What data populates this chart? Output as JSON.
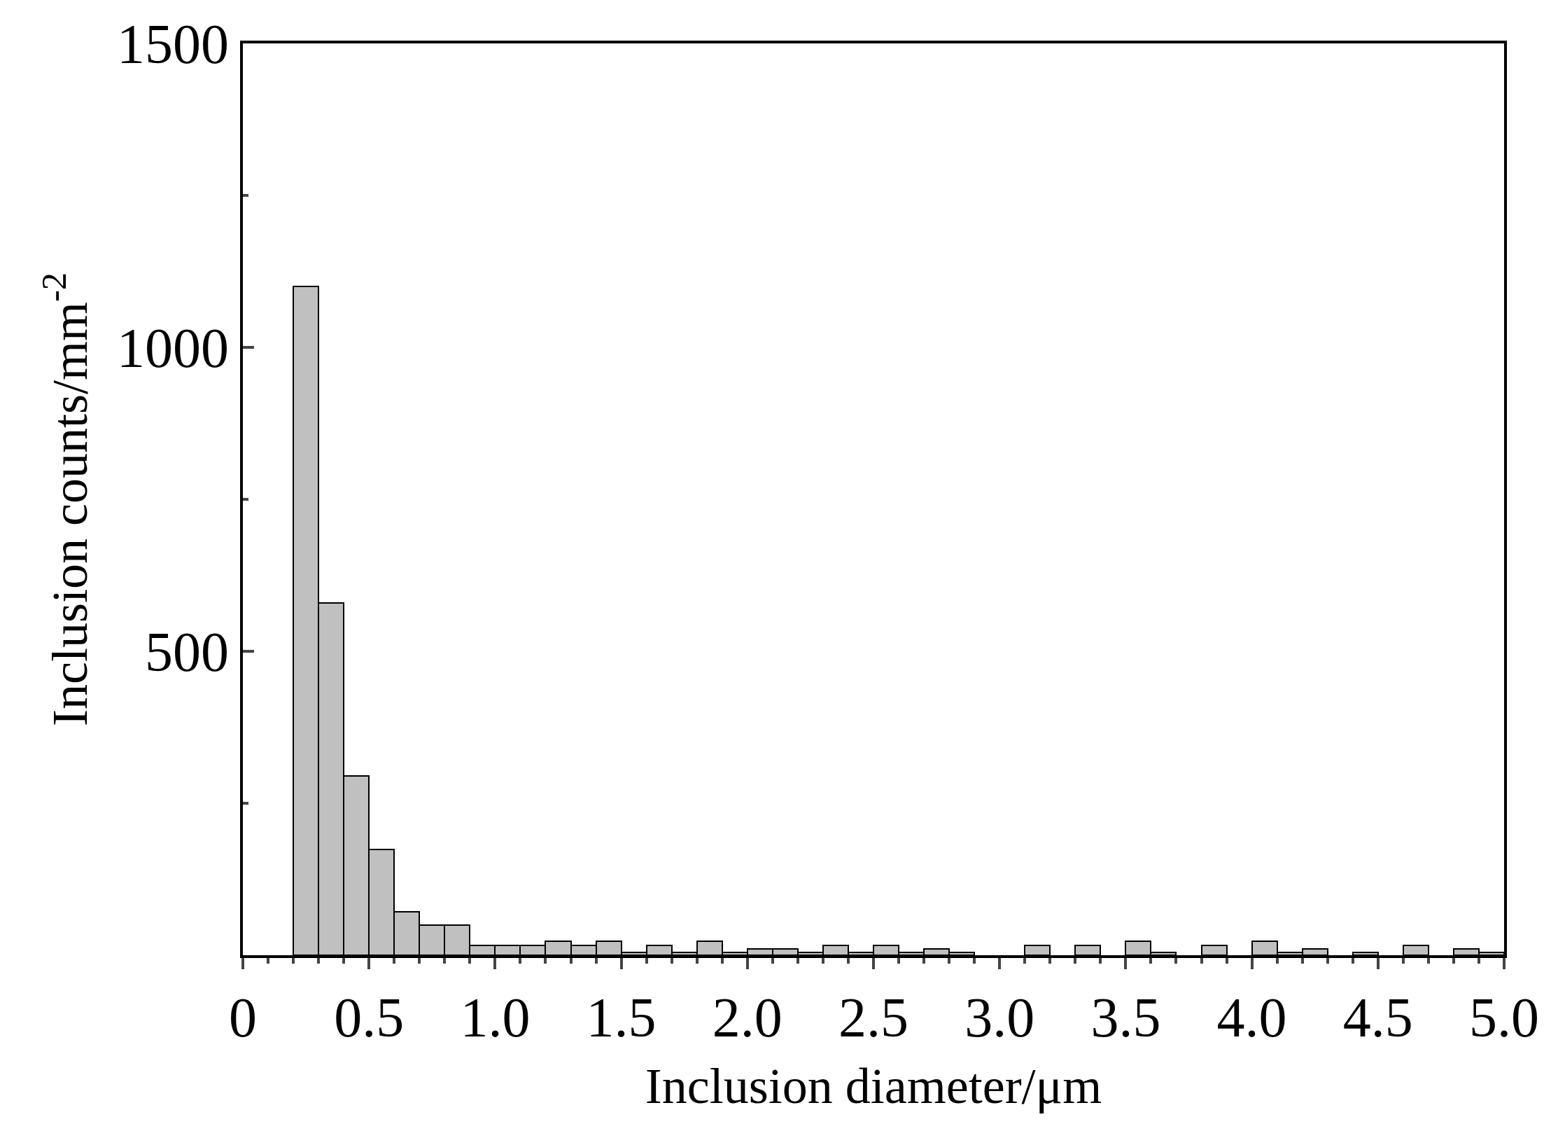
{
  "chart_data": {
    "type": "histogram",
    "xlabel": "Inclusion diameter/μm",
    "ylabel": "Inclusion counts/mm$^{-2}$",
    "color": "#c0c0c0",
    "bins": [
      0.2,
      0.3,
      0.4,
      0.5,
      0.6,
      0.7,
      0.8,
      0.9,
      1.0,
      1.1,
      1.2,
      1.3,
      1.4,
      1.5,
      1.6,
      1.7,
      1.8,
      1.9,
      2.0,
      2.1,
      2.2,
      2.3,
      2.4,
      2.5,
      2.6,
      2.7,
      2.8,
      2.9,
      3.0,
      3.1,
      3.2,
      3.3,
      3.4,
      3.5,
      3.6,
      3.7,
      3.8,
      3.9,
      4.0,
      4.1,
      4.2,
      4.3,
      4.4,
      4.5,
      4.6,
      4.7,
      4.8,
      4.9,
      5.0
    ],
    "values": [
      1100,
      580,
      295,
      174,
      72,
      49,
      49,
      16,
      16,
      16,
      23,
      16,
      23,
      5,
      16,
      5,
      23,
      5,
      10,
      10,
      5,
      16,
      5,
      16,
      5,
      10,
      5,
      0,
      0,
      16,
      0,
      16,
      0,
      23,
      5,
      0,
      16,
      0,
      23,
      5,
      10,
      0,
      5,
      0,
      16,
      0,
      10,
      5
    ],
    "xlim": [
      0,
      5
    ],
    "ylim": [
      0,
      1500
    ],
    "xticks": [
      0,
      {
        "value": 0.1,
        "label": null
      },
      {
        "value": 0.2,
        "label": null
      },
      {
        "value": 0.3,
        "label": null
      },
      {
        "value": 0.4,
        "label": null
      },
      0.5,
      {
        "value": 0.6,
        "label": null
      },
      {
        "value": 0.7,
        "label": null
      },
      {
        "value": 0.8,
        "label": null
      },
      {
        "value": 0.9,
        "label": null
      },
      {
        "value": 1,
        "label": "1.0"
      },
      {
        "value": 1.1,
        "label": null
      },
      {
        "value": 1.2,
        "label": null
      },
      {
        "value": 1.3,
        "label": null
      },
      {
        "value": 1.4,
        "label": null
      },
      1.5,
      {
        "value": 1.6,
        "label": null
      },
      {
        "value": 1.7,
        "label": null
      },
      {
        "value": 1.8,
        "label": null
      },
      {
        "value": 1.9,
        "label": null
      },
      {
        "value": 2,
        "label": "2.0"
      },
      {
        "value": 2.1,
        "label": null
      },
      {
        "value": 2.2,
        "label": null
      },
      {
        "value": 2.3,
        "label": null
      },
      {
        "value": 2.4,
        "label": null
      },
      2.5,
      {
        "value": 2.6,
        "label": null
      },
      {
        "value": 2.7,
        "label": null
      },
      {
        "value": 2.8,
        "label": null
      },
      {
        "value": 2.9,
        "label": null
      },
      {
        "value": 3,
        "label": "3.0"
      },
      {
        "value": 3.1,
        "label": null
      },
      {
        "value": 3.2,
        "label": null
      },
      {
        "value": 3.3,
        "label": null
      },
      {
        "value": 3.4,
        "label": null
      },
      3.5,
      {
        "value": 3.6,
        "label": null
      },
      {
        "value": 3.7,
        "label": null
      },
      {
        "value": 3.8,
        "label": null
      },
      {
        "value": 3.9,
        "label": null
      },
      {
        "value": 4,
        "label": "4.0"
      },
      {
        "value": 4.1,
        "label": null
      },
      {
        "value": 4.2,
        "label": null
      },
      {
        "value": 4.3,
        "label": null
      },
      {
        "value": 4.4,
        "label": null
      },
      4.5,
      {
        "value": 4.6,
        "label": null
      },
      {
        "value": 4.7,
        "label": null
      },
      {
        "value": 4.8,
        "label": null
      },
      {
        "value": 4.9,
        "label": null
      },
      {
        "value": 5,
        "label": "5.0"
      }
    ],
    "yticks": [
      {
        "value": 0,
        "label": null
      },
      {
        "value": 250,
        "label": null
      },
      500,
      {
        "value": 750,
        "label": null
      },
      1000,
      {
        "value": 1250,
        "label": null
      },
      1500
    ],
    "grid": false
  }
}
